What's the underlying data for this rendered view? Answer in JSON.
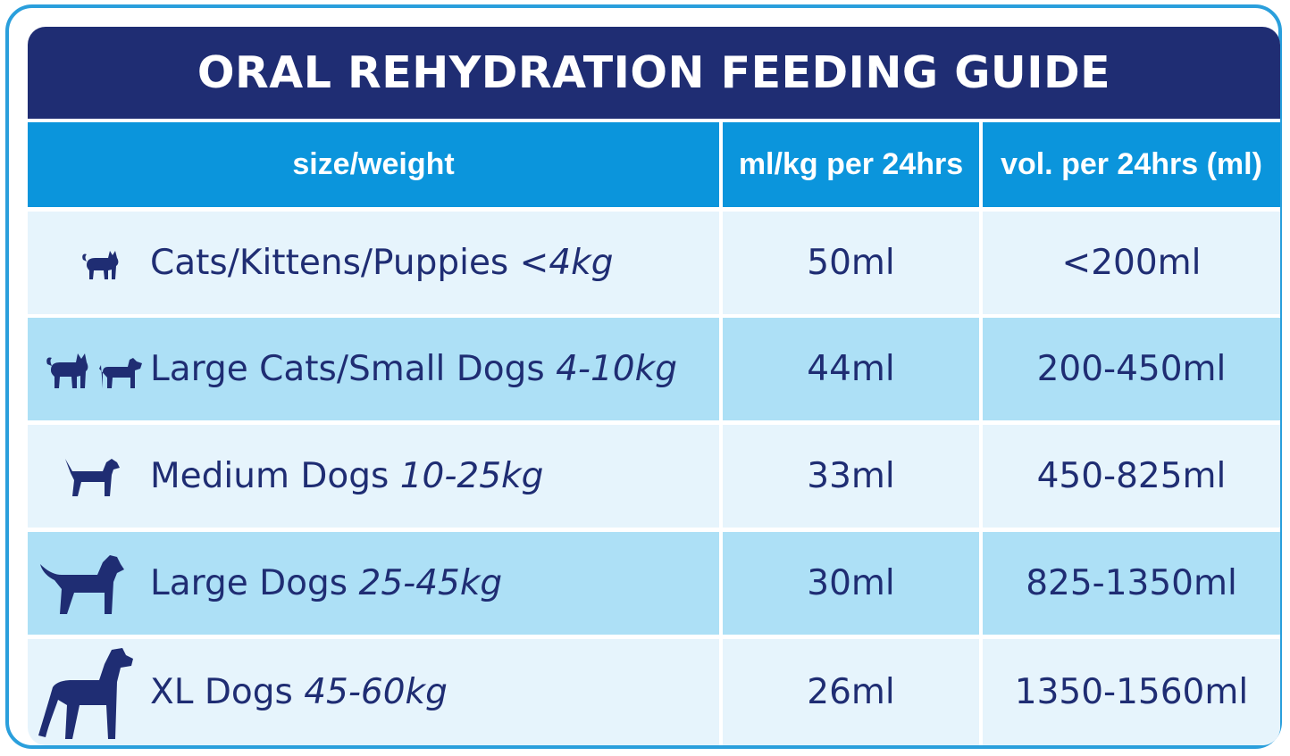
{
  "title": "ORAL REHYDRATION FEEDING GUIDE",
  "columns": [
    "size/weight",
    "ml/kg per 24hrs",
    "vol. per 24hrs (ml)"
  ],
  "rows": [
    {
      "name": "Cats/Kittens/Puppies",
      "range": "<4kg",
      "ml_per_kg": "50ml",
      "volume": "<200ml",
      "icon": "cat-icon"
    },
    {
      "name": "Large Cats/Small Dogs",
      "range": "4-10kg",
      "ml_per_kg": "44ml",
      "volume": "200-450ml",
      "icon": "cat-and-small-dog-icon"
    },
    {
      "name": "Medium Dogs",
      "range": "10-25kg",
      "ml_per_kg": "33ml",
      "volume": "450-825ml",
      "icon": "medium-dog-icon"
    },
    {
      "name": "Large Dogs",
      "range": "25-45kg",
      "ml_per_kg": "30ml",
      "volume": "825-1350ml",
      "icon": "large-dog-icon"
    },
    {
      "name": "XL Dogs",
      "range": "45-60kg",
      "ml_per_kg": "26ml",
      "volume": "1350-1560ml",
      "icon": "xl-dog-icon"
    }
  ],
  "colors": {
    "navy": "#1f2d73",
    "header_blue": "#0b95dc",
    "row_light": "#e6f4fc",
    "row_dark": "#ade0f6",
    "border": "#2a9fdc"
  }
}
